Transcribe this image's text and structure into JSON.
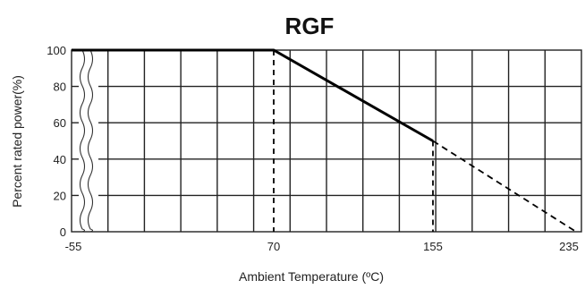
{
  "chart_data": {
    "type": "line",
    "title": "RGF",
    "xlabel": "Ambient Temperature (ºC)",
    "ylabel": "Percent rated power(%)",
    "x_tick_labels": [
      "-55",
      "70",
      "155",
      "235"
    ],
    "y_tick_labels": [
      "100",
      "80",
      "60",
      "40",
      "20",
      "0"
    ],
    "y_ticks": [
      100,
      80,
      60,
      40,
      20,
      0
    ],
    "ylim": [
      0,
      100
    ],
    "xlim": [
      -55,
      235
    ],
    "x_axis_break": true,
    "grid": true,
    "series": [
      {
        "style": "solid",
        "x": [
          -55,
          70,
          155
        ],
        "y": [
          100,
          100,
          50
        ]
      },
      {
        "style": "dashed",
        "x": [
          155,
          235
        ],
        "y": [
          50,
          0
        ]
      }
    ],
    "reference_lines": [
      {
        "style": "dashed",
        "axis": "x",
        "value": 70
      },
      {
        "style": "dashed",
        "axis": "x",
        "value": 155
      }
    ],
    "colors": {
      "line": "#000000",
      "grid": "#222222"
    }
  }
}
